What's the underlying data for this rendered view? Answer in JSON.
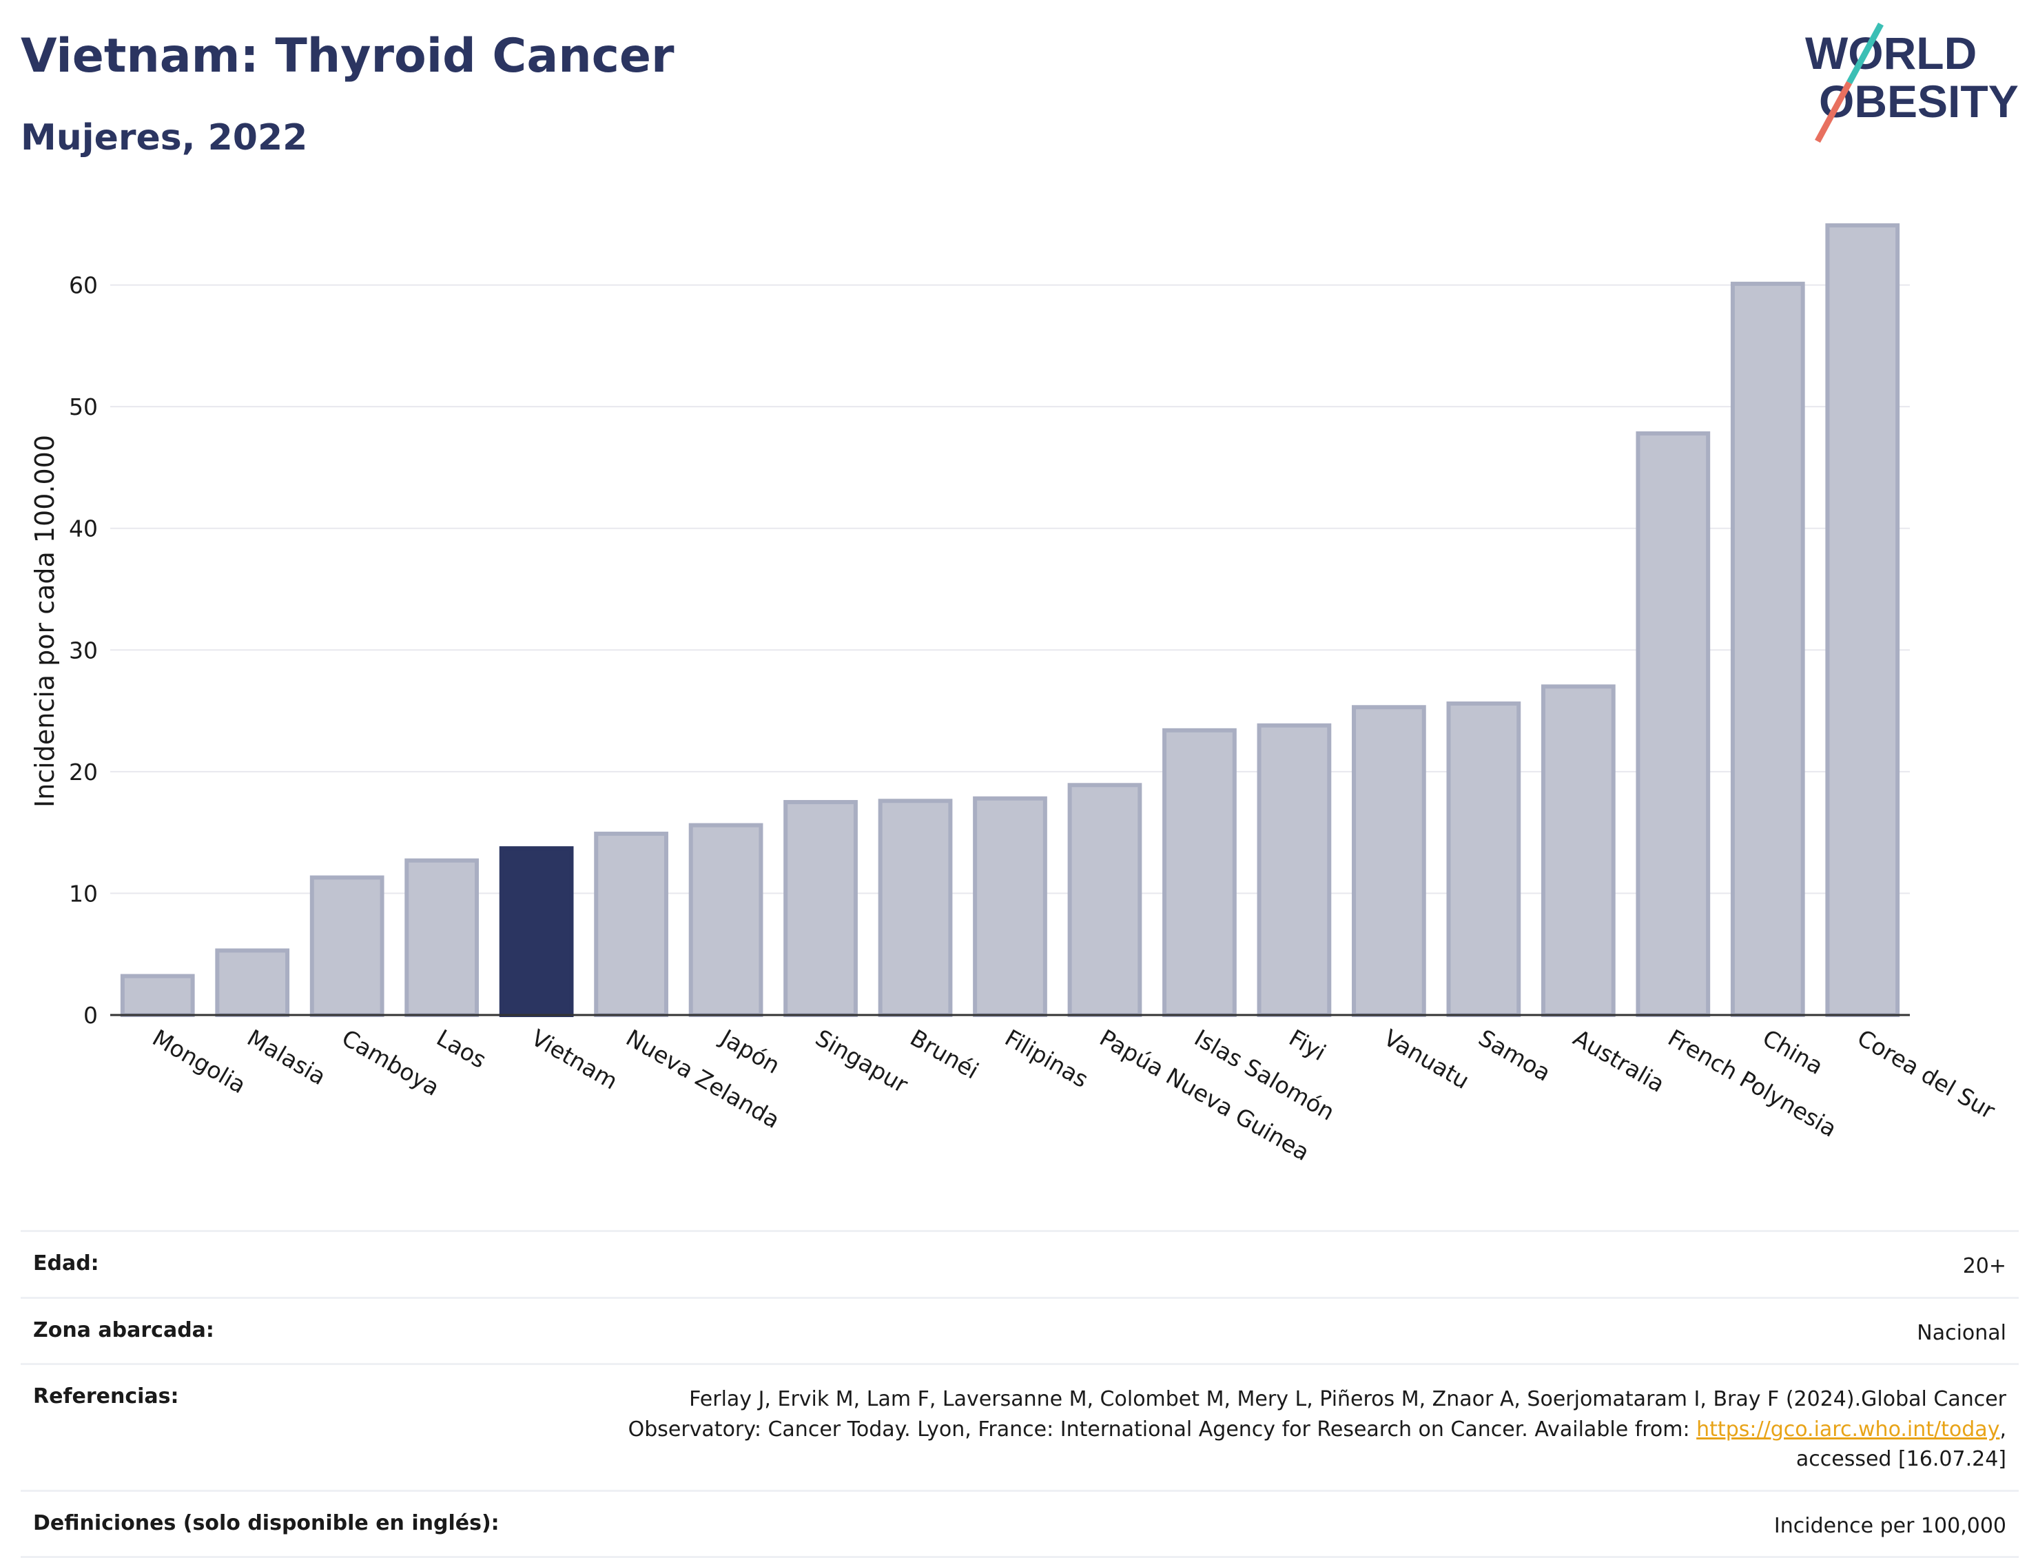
{
  "header": {
    "title": "Vietnam: Thyroid Cancer",
    "subtitle": "Mujeres, 2022"
  },
  "logo": {
    "line1": "WORLD",
    "line2": "OBESITY",
    "colors": {
      "text": "#2b3561",
      "slash_top": "#3bbfb5",
      "slash_bottom": "#e8705f"
    }
  },
  "chart_data": {
    "type": "bar",
    "ylabel": "Incidencia por cada 100.000",
    "xlabel": "",
    "ylim": [
      0,
      67
    ],
    "yticks": [
      0,
      10,
      20,
      30,
      40,
      50,
      60
    ],
    "grid": true,
    "highlight": "Vietnam",
    "colors": {
      "bar": "#c0c3d0",
      "bar_border": "#a9aec2",
      "highlight": "#2b3561",
      "grid": "#e8e8ee",
      "axis": "#333333"
    },
    "categories": [
      "Mongolia",
      "Malasia",
      "Camboya",
      "Laos",
      "Vietnam",
      "Nueva Zelanda",
      "Japón",
      "Singapur",
      "Brunéi",
      "Filipinas",
      "Papúa Nueva Guinea",
      "Islas Salomón",
      "Fiyi",
      "Vanuatu",
      "Samoa",
      "Australia",
      "French Polynesia",
      "China",
      "Corea del Sur"
    ],
    "values": [
      3.2,
      5.3,
      11.3,
      12.7,
      13.7,
      14.9,
      15.6,
      17.5,
      17.6,
      17.8,
      18.9,
      23.4,
      23.8,
      25.3,
      25.6,
      27.0,
      47.8,
      60.1,
      64.9
    ]
  },
  "metadata": {
    "rows": [
      {
        "label": "Edad:",
        "value": "20+"
      },
      {
        "label": "Zona abarcada:",
        "value": "Nacional"
      },
      {
        "label": "Referencias:",
        "value_pre": "Ferlay J, Ervik M, Lam F, Laversanne M, Colombet M, Mery L, Piñeros M, Znaor A, Soerjomataram I, Bray F (2024).Global Cancer Observatory: Cancer Today. Lyon, France: International Agency for Research on Cancer. Available from: ",
        "link": "https://gco.iarc.who.int/today",
        "value_post": ", accessed [16.07.24]"
      },
      {
        "label": "Definiciones (solo disponible en inglés):",
        "value": "Incidence per 100,000"
      }
    ]
  }
}
